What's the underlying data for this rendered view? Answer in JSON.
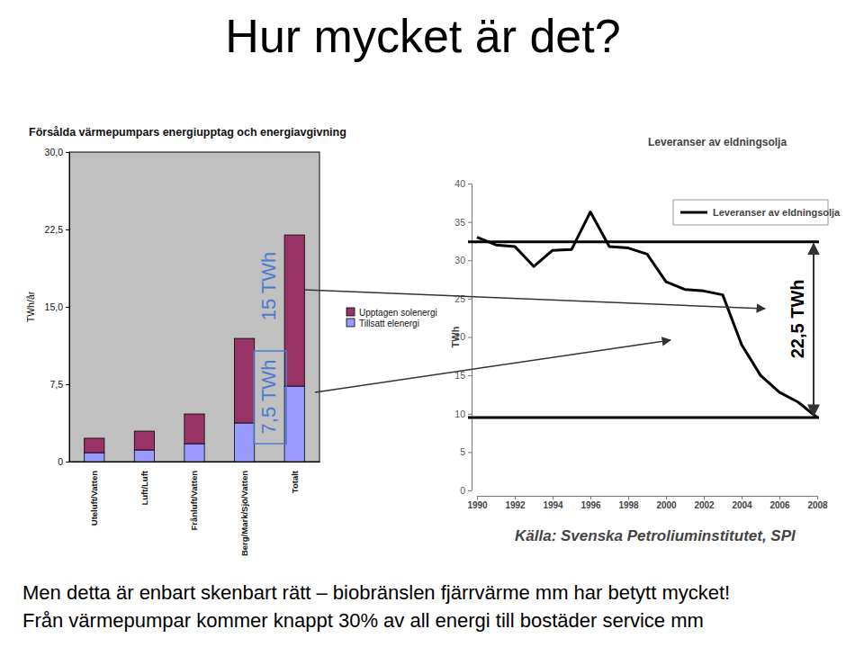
{
  "title": "Hur mycket är det?",
  "footer": [
    "Men detta är enbart skenbart rätt – biobränslen fjärrvärme mm har betytt mycket!",
    "Från värmepumpar kommer knappt 30% av all energi till bostäder service mm"
  ],
  "chart_data": [
    {
      "type": "bar",
      "stacked": true,
      "title": "Försålda värmepumpars energiupptag och energiavgivning",
      "y_label": "TWh/år",
      "categories": [
        "Uteluft/Vatten",
        "Luft/Luft",
        "Frånluft/Vatten",
        "Berg/Mark/Sjö/Vatten",
        "Totalt"
      ],
      "series": [
        {
          "name": "Tillsatt elenergi",
          "color": "#9999ff",
          "values": [
            0.87,
            1.13,
            1.74,
            3.75,
            7.32
          ]
        },
        {
          "name": "Upptagen solenergi",
          "color": "#993366",
          "values": [
            1.4,
            1.83,
            2.88,
            8.19,
            14.65
          ]
        }
      ],
      "ylim": [
        0,
        30
      ],
      "yticks": [
        0,
        {
          "value": 7.5,
          "label": "7,5"
        },
        {
          "value": 15,
          "label": "15,0"
        },
        {
          "value": 22.5,
          "label": "22,5"
        },
        {
          "value": 30,
          "label": "30,0"
        }
      ],
      "legend": "right",
      "grid": false,
      "annotations": [
        "15 TWh",
        "7,5 TWh"
      ]
    },
    {
      "type": "line",
      "title": "Leveranser av eldningsolja",
      "y_label": "TWh",
      "source": "Källa: Svenska Petroliuminstitutet, SPI",
      "x": [
        1990,
        1991,
        1992,
        1993,
        1994,
        1995,
        1996,
        1997,
        1998,
        1999,
        2000,
        2001,
        2002,
        2003,
        2004,
        2005,
        2006,
        2007,
        2008
      ],
      "series": [
        {
          "name": "Leveranser av eldningsolja",
          "color": "#000000",
          "values": [
            33,
            32,
            31.8,
            29.2,
            31.3,
            31.4,
            36.3,
            31.8,
            31.6,
            30.8,
            27.2,
            26.2,
            26,
            25.5,
            19,
            15,
            12.8,
            11.5,
            9.5
          ]
        }
      ],
      "xlim": [
        1990,
        2008
      ],
      "xticks": [
        1990,
        1992,
        1994,
        1996,
        1998,
        2000,
        2002,
        2004,
        2006,
        2008
      ],
      "ylim": [
        0,
        40
      ],
      "yticks": [
        0,
        5,
        10,
        15,
        20,
        25,
        30,
        35,
        40
      ],
      "legend": "upper right",
      "grid": false,
      "reference_lines": [
        32.4,
        9.5
      ],
      "annotations": [
        "22,5 TWh"
      ]
    }
  ]
}
